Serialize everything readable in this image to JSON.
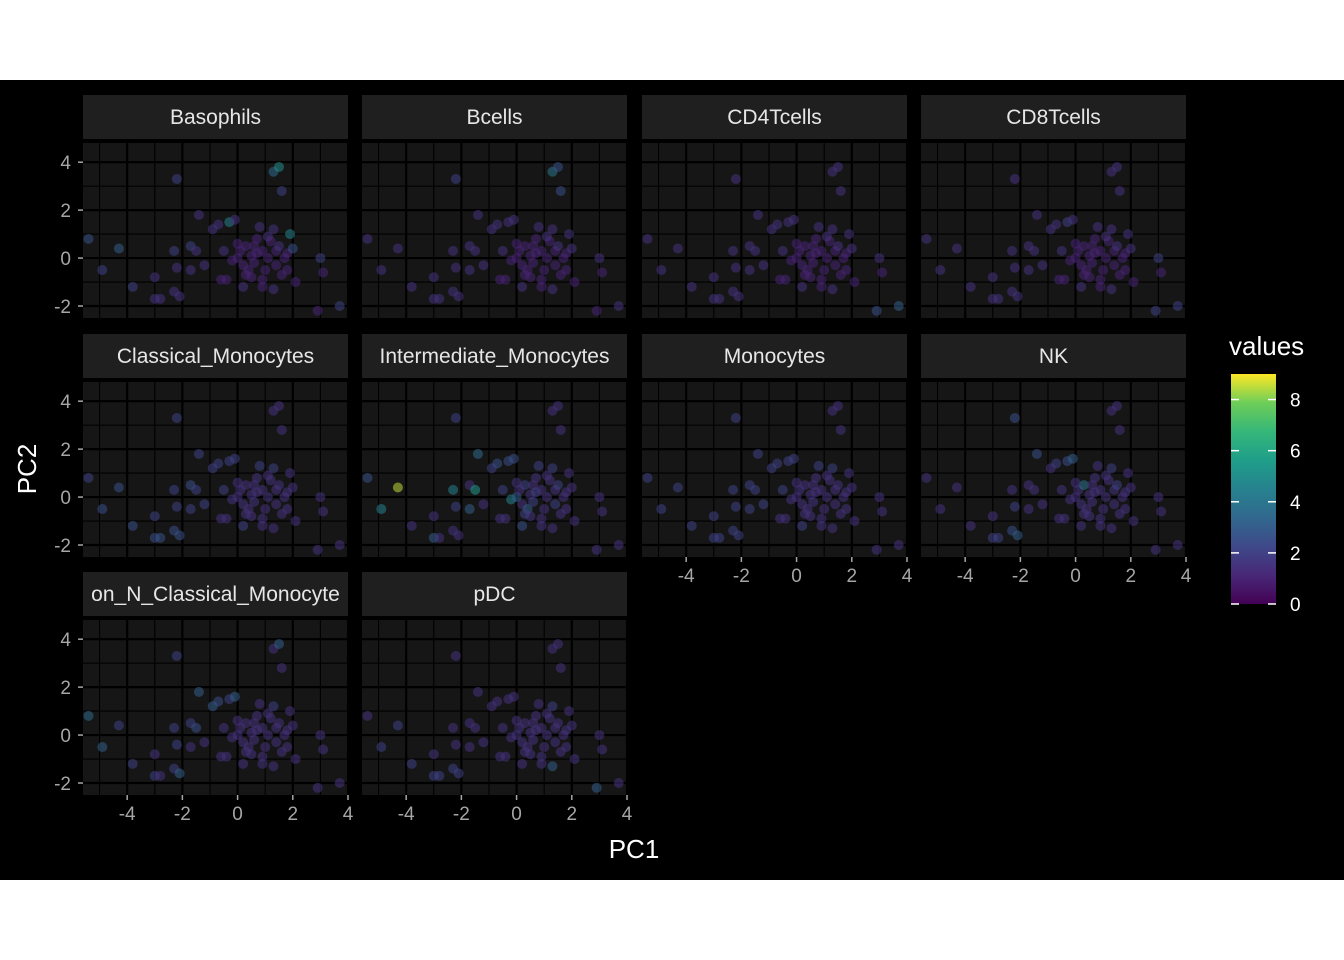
{
  "chart_data": {
    "type": "scatter",
    "facet_type": "facet_wrap",
    "xlabel": "PC1",
    "ylabel": "PC2",
    "xlim": [
      -5.6,
      4.0
    ],
    "ylim": [
      -2.5,
      4.8
    ],
    "x_ticks": [
      -4,
      -2,
      0,
      2,
      4
    ],
    "y_ticks": [
      -2,
      0,
      2,
      4
    ],
    "x_tick_labels": [
      "-4",
      "-2",
      "0",
      "2",
      "4"
    ],
    "y_tick_labels": [
      "-2",
      "0",
      "2",
      "4"
    ],
    "grid": true,
    "legend": {
      "title": "values",
      "placement": "right",
      "scale": "viridis",
      "range": [
        0,
        9
      ],
      "ticks": [
        0,
        2,
        4,
        6,
        8
      ],
      "tick_labels": [
        "0",
        "2",
        "4",
        "6",
        "8"
      ]
    },
    "colors": {
      "background": "#000000",
      "panel": "#161616",
      "strip": "#1f1f1f",
      "grid": "#000000",
      "text": "#ffffff",
      "tick_text": "#a6a6a6"
    },
    "points": [
      {
        "x": -5.4,
        "y": 0.8
      },
      {
        "x": -4.9,
        "y": -0.5
      },
      {
        "x": -4.3,
        "y": 0.4
      },
      {
        "x": -3.8,
        "y": -1.2
      },
      {
        "x": -3.0,
        "y": -1.7
      },
      {
        "x": -2.8,
        "y": -1.7
      },
      {
        "x": -3.0,
        "y": -0.8
      },
      {
        "x": -2.2,
        "y": 3.3
      },
      {
        "x": -2.3,
        "y": -1.4
      },
      {
        "x": -2.1,
        "y": -1.6
      },
      {
        "x": -2.3,
        "y": 0.3
      },
      {
        "x": -2.2,
        "y": -0.4
      },
      {
        "x": -1.7,
        "y": -0.5
      },
      {
        "x": -1.7,
        "y": 0.5
      },
      {
        "x": -1.5,
        "y": 0.3
      },
      {
        "x": -1.4,
        "y": 1.8
      },
      {
        "x": -1.2,
        "y": -0.3
      },
      {
        "x": -0.9,
        "y": 1.2
      },
      {
        "x": -0.7,
        "y": 1.4
      },
      {
        "x": -0.6,
        "y": -0.9
      },
      {
        "x": -0.4,
        "y": -0.9
      },
      {
        "x": -0.5,
        "y": 0.3
      },
      {
        "x": -0.3,
        "y": 1.5
      },
      {
        "x": -0.1,
        "y": 1.6
      },
      {
        "x": -0.2,
        "y": -0.1
      },
      {
        "x": 0.0,
        "y": 0.0
      },
      {
        "x": 0.1,
        "y": 0.3
      },
      {
        "x": 0.2,
        "y": -0.3
      },
      {
        "x": 0.3,
        "y": 0.5
      },
      {
        "x": 0.4,
        "y": -0.5
      },
      {
        "x": 0.2,
        "y": -1.2
      },
      {
        "x": 0.5,
        "y": -0.8
      },
      {
        "x": 0.5,
        "y": 0.1
      },
      {
        "x": 0.6,
        "y": 0.5
      },
      {
        "x": 0.7,
        "y": 0.2
      },
      {
        "x": 0.6,
        "y": -0.2
      },
      {
        "x": 0.7,
        "y": 0.8
      },
      {
        "x": 0.8,
        "y": 1.3
      },
      {
        "x": 0.9,
        "y": -0.9
      },
      {
        "x": 0.9,
        "y": 0.3
      },
      {
        "x": 1.0,
        "y": -0.5
      },
      {
        "x": 1.1,
        "y": 0.0
      },
      {
        "x": 1.2,
        "y": 0.7
      },
      {
        "x": 1.3,
        "y": -1.3
      },
      {
        "x": 1.3,
        "y": 1.2
      },
      {
        "x": 1.4,
        "y": 0.3
      },
      {
        "x": 1.4,
        "y": -0.3
      },
      {
        "x": 1.5,
        "y": 0.5
      },
      {
        "x": 1.6,
        "y": -0.7
      },
      {
        "x": 1.6,
        "y": 2.8
      },
      {
        "x": 1.3,
        "y": 3.6
      },
      {
        "x": 1.5,
        "y": 3.8
      },
      {
        "x": 1.8,
        "y": 0.2
      },
      {
        "x": 1.8,
        "y": -0.5
      },
      {
        "x": 1.9,
        "y": 1.0
      },
      {
        "x": 2.0,
        "y": 0.4
      },
      {
        "x": 2.1,
        "y": -1.0
      },
      {
        "x": 2.9,
        "y": -2.2
      },
      {
        "x": 3.0,
        "y": 0.0
      },
      {
        "x": 3.1,
        "y": -0.6
      },
      {
        "x": 3.7,
        "y": -2.0
      },
      {
        "x": 0.3,
        "y": -0.7
      },
      {
        "x": 0.9,
        "y": -1.2
      },
      {
        "x": 1.1,
        "y": 0.9
      },
      {
        "x": 1.7,
        "y": 0.0
      },
      {
        "x": 0.0,
        "y": 0.6
      }
    ],
    "facets": [
      {
        "title": "Basophils",
        "values": [
          2.5,
          2,
          3,
          2,
          1.5,
          1.5,
          1.5,
          2,
          1.5,
          1.5,
          2,
          1.5,
          1.5,
          2,
          1.5,
          1.5,
          1.5,
          1.5,
          1.5,
          1,
          1,
          1.5,
          4.5,
          1.5,
          1,
          1,
          1,
          1,
          1,
          1,
          1.5,
          1,
          1,
          1,
          1,
          1,
          1,
          1.5,
          1,
          1,
          1,
          1,
          1,
          1.5,
          1.5,
          1,
          1,
          1.5,
          1,
          2,
          3.5,
          5,
          1,
          1,
          4.5,
          2.5,
          1,
          1,
          2,
          1,
          2,
          1,
          1,
          1.5,
          1,
          1
        ]
      },
      {
        "title": "Bcells",
        "values": [
          1.5,
          1.5,
          1.5,
          1.5,
          1.5,
          1.5,
          1.5,
          2,
          1.5,
          1.5,
          1.5,
          1.5,
          1.5,
          1.5,
          1.5,
          1.5,
          1.5,
          1.5,
          1.5,
          1,
          1,
          1.5,
          1.5,
          1.5,
          1,
          1,
          1,
          1,
          1,
          1,
          1.5,
          1,
          1,
          1,
          1,
          1,
          1,
          1.5,
          1,
          1,
          1,
          1,
          1,
          1.5,
          1.5,
          1,
          1,
          1.5,
          1,
          2.5,
          4,
          2.5,
          1,
          1,
          1.5,
          1.5,
          1,
          1,
          1.5,
          1,
          1.5,
          1,
          1,
          1.5,
          1,
          1
        ]
      },
      {
        "title": "CD4Tcells",
        "values": [
          1.5,
          1.5,
          1.5,
          1.5,
          1.5,
          1.5,
          1.5,
          1.5,
          1.5,
          1.5,
          1.5,
          1.5,
          1.5,
          1.5,
          1.5,
          1.5,
          1.5,
          1.5,
          1.5,
          1,
          1,
          1.5,
          1.5,
          1.5,
          1,
          1,
          1,
          1,
          1,
          1,
          1.5,
          1,
          1,
          1,
          1,
          1,
          1,
          1.5,
          1,
          1,
          1,
          1,
          1,
          1.5,
          1.5,
          1,
          1,
          1.5,
          1,
          1.5,
          1.5,
          1.5,
          1,
          1,
          1.5,
          1.5,
          1,
          2.5,
          1.5,
          1,
          3,
          1,
          1,
          1.5,
          1,
          1
        ]
      },
      {
        "title": "CD8Tcells",
        "values": [
          1.5,
          1.5,
          1.5,
          1.5,
          1.5,
          1.5,
          1.5,
          1.5,
          1.5,
          1.5,
          1.5,
          1.5,
          1.5,
          1.5,
          1.5,
          1.5,
          1.5,
          1.5,
          1.5,
          1,
          1,
          1.5,
          2,
          1.5,
          1,
          1,
          1,
          1,
          1,
          1,
          1.5,
          1,
          1,
          1,
          1,
          1,
          1,
          1.5,
          1,
          1,
          1,
          1,
          1,
          1.5,
          1.5,
          1,
          1,
          1.5,
          1,
          1.5,
          1.5,
          1.5,
          1,
          1,
          1.5,
          1.5,
          1,
          2,
          2,
          1,
          2,
          1,
          1,
          1.5,
          1,
          1
        ]
      },
      {
        "title": "Classical_Monocytes",
        "values": [
          2,
          2.5,
          2.5,
          2.5,
          2.5,
          2.5,
          2,
          2,
          2.5,
          2.5,
          2,
          2,
          2,
          2.5,
          2,
          2,
          2,
          2,
          2,
          1.5,
          1.5,
          2,
          2,
          2,
          1.5,
          1.5,
          1.5,
          1.5,
          1.5,
          1.5,
          2,
          1.5,
          1.5,
          1.5,
          1.5,
          1.5,
          1.5,
          2,
          1.5,
          1.5,
          1.5,
          1.5,
          1.5,
          1.5,
          2,
          1.5,
          1.5,
          1.5,
          1.5,
          1.5,
          1.5,
          1.5,
          1.5,
          1.5,
          1.5,
          1.5,
          1.5,
          1.5,
          1.5,
          1.5,
          1.5,
          1.5,
          1.5,
          1.5,
          1.5,
          1.5
        ]
      },
      {
        "title": "Intermediate_Monocytes",
        "values": [
          2.5,
          4.5,
          8.5,
          1.5,
          3,
          1.5,
          1.5,
          2,
          1.5,
          1.5,
          4.5,
          2,
          3,
          1.5,
          5.5,
          3.5,
          1.5,
          2,
          2.5,
          1.5,
          1.5,
          2,
          2.5,
          2.5,
          4.5,
          3,
          1.5,
          1.5,
          2,
          3,
          2.5,
          1.5,
          1.5,
          1.5,
          2,
          2,
          1.5,
          2,
          1.5,
          1.5,
          1.5,
          1.5,
          1.5,
          1.5,
          2,
          1.5,
          2,
          2,
          1.5,
          1.5,
          1.5,
          1.5,
          1.5,
          1.5,
          1.5,
          1.5,
          1.5,
          1.5,
          1.5,
          1.5,
          1.5,
          2,
          1.5,
          1.5,
          1.5,
          1.5
        ]
      },
      {
        "title": "Monocytes",
        "values": [
          2,
          2,
          2,
          2,
          2,
          2,
          2,
          2,
          2,
          2,
          2,
          2,
          2,
          2,
          2,
          2,
          2,
          2,
          2,
          1.5,
          1.5,
          2,
          2,
          2,
          1.5,
          1.5,
          1.5,
          1.5,
          1.5,
          1.5,
          2,
          1.5,
          1.5,
          1.5,
          1.5,
          1.5,
          1.5,
          2,
          1.5,
          1.5,
          1.5,
          1.5,
          1.5,
          1.5,
          2,
          1.5,
          1.5,
          1.5,
          1.5,
          1.5,
          1.5,
          1.5,
          1.5,
          1.5,
          1.5,
          1.5,
          1.5,
          1.5,
          1.5,
          1.5,
          1.5,
          1.5,
          1.5,
          1.5,
          1.5,
          1.5
        ]
      },
      {
        "title": "NK",
        "values": [
          1.5,
          1.5,
          1.5,
          1.5,
          2,
          2,
          1.5,
          2.5,
          2.5,
          3,
          1.5,
          2,
          1.5,
          1.5,
          1.5,
          2.5,
          1.5,
          1.5,
          2,
          1.5,
          1.5,
          1.5,
          2.5,
          3,
          1.5,
          1.5,
          1.5,
          1.5,
          4,
          1.5,
          1.5,
          1.5,
          1.5,
          1.5,
          1.5,
          1.5,
          1.5,
          1.5,
          1.5,
          1.5,
          1.5,
          1.5,
          1.5,
          1.5,
          2,
          1.5,
          1.5,
          2,
          1.5,
          1.5,
          1.5,
          1.5,
          1.5,
          1.5,
          1.5,
          1.5,
          1.5,
          1.5,
          1.5,
          1.5,
          1.5,
          1.5,
          1.5,
          1.5,
          1.5,
          1.5
        ]
      },
      {
        "title": "Non_N_Classical_Monocytes",
        "display_title": "on_N_Classical_Monocyte",
        "values": [
          3.5,
          3,
          2,
          2,
          2,
          1.5,
          1.5,
          2,
          2,
          3,
          2,
          2,
          1.5,
          2,
          2.5,
          3,
          1.5,
          3,
          2.5,
          1.5,
          1.5,
          1.5,
          2,
          3,
          1.5,
          1.5,
          1.5,
          1.5,
          1.5,
          1.5,
          1.5,
          1.5,
          1.5,
          1.5,
          1.5,
          1.5,
          1.5,
          1.5,
          1.5,
          1.5,
          1.5,
          1.5,
          1.5,
          1.5,
          2,
          1.5,
          1.5,
          1.5,
          1.5,
          1.5,
          1.5,
          3,
          1.5,
          1.5,
          1.5,
          1.5,
          1.5,
          1.5,
          1.5,
          1.5,
          1.5,
          1.5,
          1.5,
          1.5,
          1.5,
          1.5
        ]
      },
      {
        "title": "pDC",
        "values": [
          1.5,
          2,
          2,
          2,
          2,
          2,
          1.5,
          1.5,
          2,
          2,
          1.5,
          1.5,
          1.5,
          1.5,
          1.5,
          1.5,
          1.5,
          1.5,
          1.5,
          1.5,
          1.5,
          1.5,
          1.5,
          1.5,
          1.5,
          1.5,
          1.5,
          1.5,
          1.5,
          1.5,
          1.5,
          1.5,
          1.5,
          1.5,
          1.5,
          1.5,
          1.5,
          1.5,
          1.5,
          1.5,
          1.5,
          1.5,
          1.5,
          3,
          2,
          1.5,
          1.5,
          1.5,
          1.5,
          1.5,
          1.5,
          1.5,
          1.5,
          1.5,
          1.5,
          1.5,
          1.5,
          3,
          1.5,
          1.5,
          1.5,
          1.5,
          1.5,
          1.5,
          1.5,
          1.5
        ]
      }
    ]
  }
}
